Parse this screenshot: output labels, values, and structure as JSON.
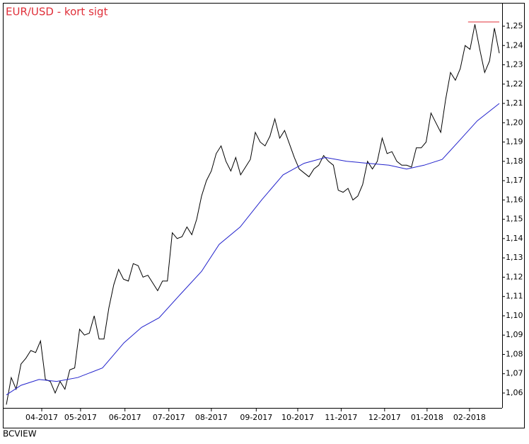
{
  "chart_data": {
    "type": "line",
    "title": "EUR/USD - kort sigt",
    "footer": "BCVIEW",
    "xlim": [
      0,
      101
    ],
    "xticks": [
      {
        "value": 7.25,
        "label": "04-2017"
      },
      {
        "value": 15.2,
        "label": "05-2017"
      },
      {
        "value": 24.3,
        "label": "06-2017"
      },
      {
        "value": 33.3,
        "label": "07-2017"
      },
      {
        "value": 42.0,
        "label": "08-2017"
      },
      {
        "value": 51.2,
        "label": "09-2017"
      },
      {
        "value": 59.7,
        "label": "10-2017"
      },
      {
        "value": 68.6,
        "label": "11-2017"
      },
      {
        "value": 77.5,
        "label": "12-2017"
      },
      {
        "value": 86.2,
        "label": "01-2018"
      },
      {
        "value": 94.9,
        "label": "02-2018"
      }
    ],
    "ylim": [
      1.0523,
      1.2533
    ],
    "yticks": [
      {
        "value": 1.06,
        "label": "1,06"
      },
      {
        "value": 1.07,
        "label": "1,07"
      },
      {
        "value": 1.08,
        "label": "1,08"
      },
      {
        "value": 1.09,
        "label": "1,09"
      },
      {
        "value": 1.1,
        "label": "1,10"
      },
      {
        "value": 1.11,
        "label": "1,11"
      },
      {
        "value": 1.12,
        "label": "1,12"
      },
      {
        "value": 1.13,
        "label": "1,13"
      },
      {
        "value": 1.14,
        "label": "1,14"
      },
      {
        "value": 1.15,
        "label": "1,15"
      },
      {
        "value": 1.16,
        "label": "1,16"
      },
      {
        "value": 1.17,
        "label": "1,17"
      },
      {
        "value": 1.18,
        "label": "1,18"
      },
      {
        "value": 1.19,
        "label": "1,19"
      },
      {
        "value": 1.2,
        "label": "1,20"
      },
      {
        "value": 1.21,
        "label": "1,21"
      },
      {
        "value": 1.22,
        "label": "1,22"
      },
      {
        "value": 1.23,
        "label": "1,23"
      },
      {
        "value": 1.24,
        "label": "1,24"
      },
      {
        "value": 1.25,
        "label": "1,25"
      }
    ],
    "series": [
      {
        "color": "#000000",
        "values": [
          1.054,
          1.068,
          1.062,
          1.075,
          1.078,
          1.082,
          1.081,
          1.087,
          1.067,
          1.066,
          1.06,
          1.066,
          1.062,
          1.072,
          1.073,
          1.093,
          1.09,
          1.091,
          1.1,
          1.088,
          1.088,
          1.104,
          1.116,
          1.124,
          1.119,
          1.118,
          1.127,
          1.126,
          1.12,
          1.121,
          1.117,
          1.113,
          1.118,
          1.118,
          1.143,
          1.14,
          1.141,
          1.146,
          1.142,
          1.15,
          1.162,
          1.17,
          1.175,
          1.184,
          1.188,
          1.18,
          1.175,
          1.182,
          1.173,
          1.177,
          1.181,
          1.195,
          1.19,
          1.188,
          1.193,
          1.202,
          1.192,
          1.196,
          1.189,
          1.182,
          1.176,
          1.174,
          1.172,
          1.176,
          1.178,
          1.183,
          1.18,
          1.178,
          1.165,
          1.164,
          1.166,
          1.16,
          1.162,
          1.168,
          1.18,
          1.176,
          1.18,
          1.192,
          1.184,
          1.185,
          1.18,
          1.178,
          1.178,
          1.177,
          1.187,
          1.187,
          1.19,
          1.205,
          1.2,
          1.195,
          1.212,
          1.226,
          1.222,
          1.228,
          1.24,
          1.238,
          1.251,
          1.238,
          1.226,
          1.232,
          1.249,
          1.236
        ]
      },
      {
        "color": "#2222cc",
        "x": [
          0,
          3,
          6.7,
          10.3,
          14.6,
          19.7,
          24.1,
          27.7,
          31.3,
          35.6,
          40,
          43.6,
          47.9,
          52.3,
          56.7,
          61,
          65.4,
          69.7,
          74.1,
          78.4,
          82,
          85.6,
          89.3,
          92.9,
          96.5,
          101
        ],
        "values": [
          1.059,
          1.064,
          1.067,
          1.066,
          1.068,
          1.073,
          1.086,
          1.094,
          1.099,
          1.111,
          1.123,
          1.137,
          1.146,
          1.16,
          1.173,
          1.179,
          1.182,
          1.18,
          1.179,
          1.178,
          1.176,
          1.178,
          1.181,
          1.191,
          1.201,
          1.21
        ]
      }
    ],
    "hline": {
      "value": 1.2522,
      "x": [
        94.6,
        101
      ],
      "color": "#e0303a"
    }
  }
}
